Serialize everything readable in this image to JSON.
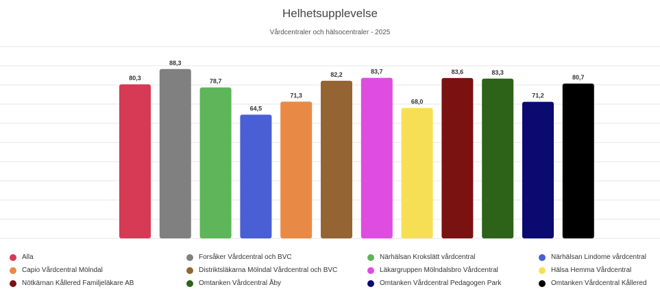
{
  "chart_data": {
    "type": "bar",
    "title": "Helhetsupplevelse",
    "subtitle": "Vårdcentraler och hälsocentraler - 2025",
    "ylim": [
      0,
      100
    ],
    "grid": true,
    "legend_position": "bottom",
    "series": [
      {
        "name": "Alla",
        "value": 80.3,
        "label": "80,3",
        "color": "#d63a55"
      },
      {
        "name": "Forsåker Vårdcentral och BVC",
        "value": 88.3,
        "label": "88,3",
        "color": "#808080"
      },
      {
        "name": "Närhälsan Krokslätt vårdcentral",
        "value": 78.7,
        "label": "78,7",
        "color": "#5fb55a"
      },
      {
        "name": "Närhälsan Lindome vårdcentral",
        "value": 64.5,
        "label": "64,5",
        "color": "#4a5fd4"
      },
      {
        "name": "Capio Vårdcentral Mölndal",
        "value": 71.3,
        "label": "71,3",
        "color": "#e88a45"
      },
      {
        "name": "Distriktsläkarna Mölndal Vårdcentral och BVC",
        "value": 82.2,
        "label": "82,2",
        "color": "#946532"
      },
      {
        "name": "Läkargruppen Mölndalsbro Vårdcentral",
        "value": 83.7,
        "label": "83,7",
        "color": "#de4de0"
      },
      {
        "name": "Hälsa Hemma Vårdcentral",
        "value": 68.0,
        "label": "68,0",
        "color": "#f7df55"
      },
      {
        "name": "Nötkärnan Kållered Familjeläkare AB",
        "value": 83.6,
        "label": "83,6",
        "color": "#7a1212"
      },
      {
        "name": "Omtanken Vårdcentral Åby",
        "value": 83.3,
        "label": "83,3",
        "color": "#2c6318"
      },
      {
        "name": "Omtanken Vårdcentral Pedagogen Park",
        "value": 71.2,
        "label": "71,2",
        "color": "#0a0a70"
      },
      {
        "name": "Omtanken Vårdcentral Kållered",
        "value": 80.7,
        "label": "80,7",
        "color": "#000000"
      }
    ]
  }
}
